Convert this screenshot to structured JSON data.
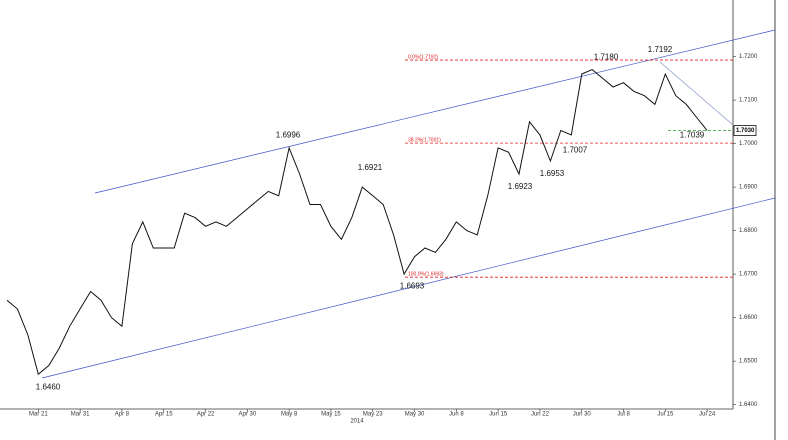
{
  "chart_data": {
    "type": "line",
    "categories": [
      null,
      null,
      null,
      "Mar 21",
      null,
      null,
      null,
      "Mar 31",
      null,
      null,
      null,
      "Apr 8",
      null,
      null,
      null,
      "Apr 15",
      null,
      null,
      null,
      "Apr 22",
      null,
      null,
      null,
      "Apr 30",
      null,
      null,
      null,
      "May 8",
      null,
      null,
      null,
      "May 15",
      null,
      null,
      null,
      "May 23",
      null,
      null,
      null,
      "May 30",
      null,
      null,
      null,
      "Jun 8",
      null,
      null,
      null,
      "Jun 15",
      null,
      null,
      null,
      "Jun 22",
      null,
      null,
      null,
      "Jun 30",
      null,
      null,
      null,
      "Jul 8",
      null,
      null,
      null,
      "Jul 15",
      null,
      null,
      null,
      "Jul 24"
    ],
    "x_label": "2014",
    "series": [
      {
        "color": "#111111",
        "values": [
          1.664,
          1.662,
          1.656,
          1.647,
          1.649,
          1.653,
          1.658,
          1.662,
          1.666,
          1.664,
          1.66,
          1.658,
          1.677,
          1.682,
          1.676,
          1.676,
          1.676,
          1.684,
          1.683,
          1.681,
          1.682,
          1.681,
          1.683,
          1.685,
          1.687,
          1.689,
          1.688,
          1.699,
          1.693,
          1.686,
          1.686,
          1.681,
          1.678,
          1.683,
          1.69,
          1.688,
          1.686,
          1.679,
          1.67,
          1.674,
          1.676,
          1.675,
          1.678,
          1.682,
          1.68,
          1.679,
          1.688,
          1.699,
          1.698,
          1.693,
          1.705,
          1.702,
          1.696,
          1.703,
          1.702,
          1.716,
          1.717,
          1.715,
          1.713,
          1.714,
          1.712,
          1.711,
          1.709,
          1.716,
          1.711,
          1.709,
          1.706,
          1.703
        ]
      }
    ],
    "ylim": [
      1.639,
      1.733
    ],
    "yticks": [
      {
        "value": 1.64,
        "label": "1.6400"
      },
      {
        "value": 1.65,
        "label": "1.6500"
      },
      {
        "value": 1.66,
        "label": "1.6600"
      },
      {
        "value": 1.67,
        "label": "1.6700"
      },
      {
        "value": 1.68,
        "label": "1.6800"
      },
      {
        "value": 1.69,
        "label": "1.6900"
      },
      {
        "value": 1.7,
        "label": "1.7000"
      },
      {
        "value": 1.71,
        "label": "1.7100"
      },
      {
        "value": 1.72,
        "label": "1.7200"
      }
    ],
    "last_price": {
      "value": 1.703,
      "label": "1.7030"
    },
    "levels": [
      {
        "value": 1.7192,
        "label": "0.0%(1.7192)"
      },
      {
        "value": 1.7001,
        "label": "38.2%(1.7001)"
      },
      {
        "value": 1.6693,
        "label": "100.0%(1.6693)"
      }
    ],
    "annotations": [
      {
        "value": 1.646,
        "label": "1.6460"
      },
      {
        "value": 1.6996,
        "label": "1.6996"
      },
      {
        "value": 1.6921,
        "label": "1.6921"
      },
      {
        "value": 1.6693,
        "label": "1.6693"
      },
      {
        "value": 1.6923,
        "label": "1.6923"
      },
      {
        "value": 1.6953,
        "label": "1.6953"
      },
      {
        "value": 1.7007,
        "label": "1.7007"
      },
      {
        "value": 1.718,
        "label": "1.7180"
      },
      {
        "value": 1.7192,
        "label": "1.7192"
      },
      {
        "value": 1.7039,
        "label": "1.7039"
      }
    ]
  }
}
